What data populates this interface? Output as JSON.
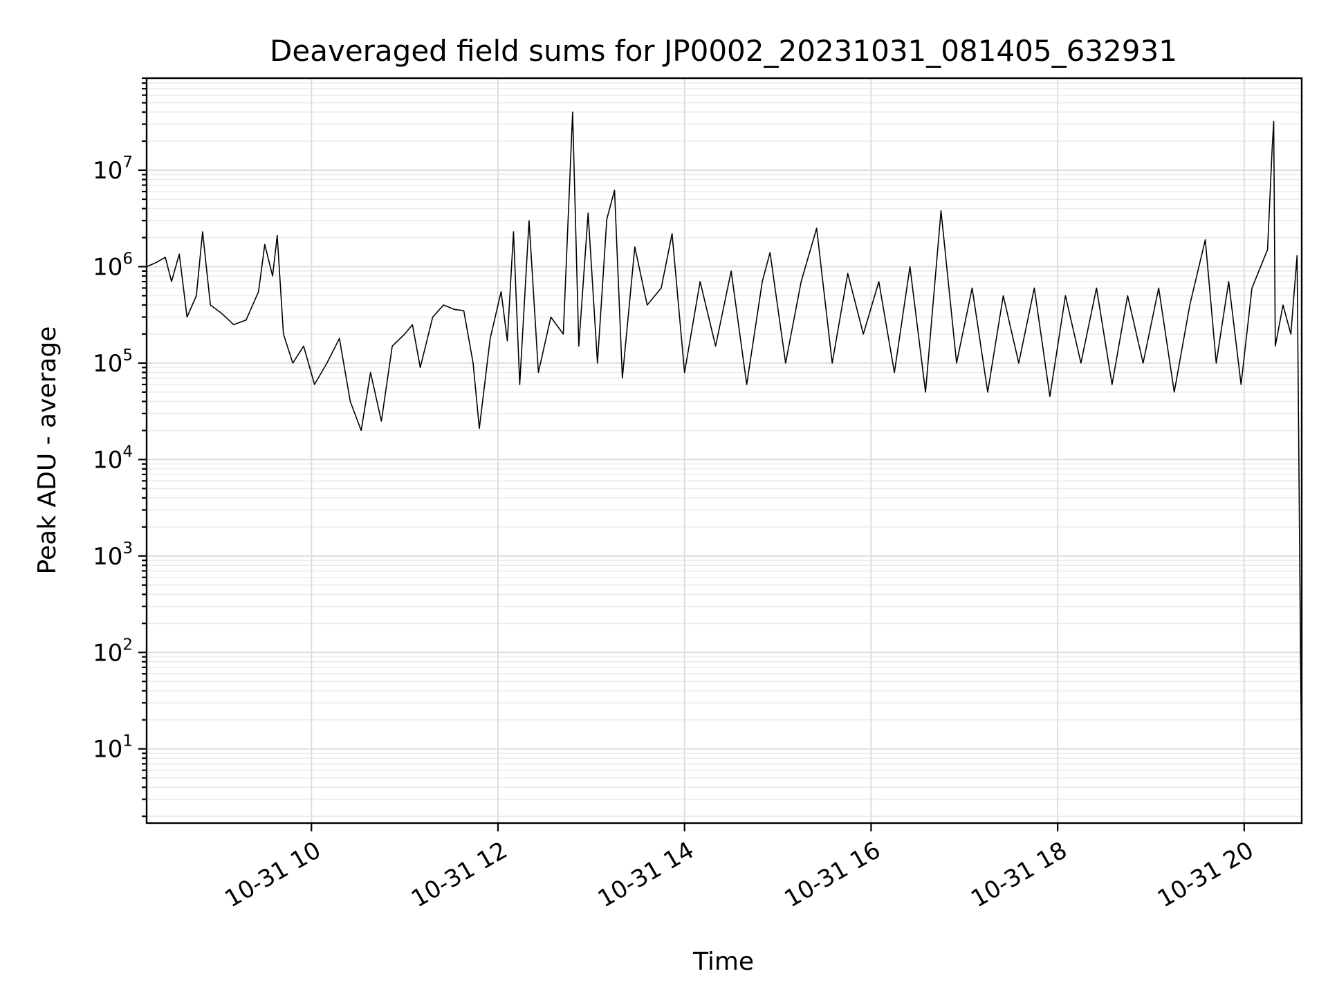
{
  "chart_data": {
    "type": "line",
    "title": "Deaveraged field sums for JP0002_20231031_081405_632931",
    "xlabel": "Time",
    "ylabel": "Peak ADU - average",
    "xscale": "time",
    "yscale": "log",
    "xlim": [
      "2023-10-31 08:14",
      "2023-10-31 20:37"
    ],
    "ylim": [
      1.7,
      90000000
    ],
    "grid": {
      "major": true,
      "minor": true
    },
    "x_ticks": [
      {
        "value": "2023-10-31 10:00",
        "label": "10-31 10"
      },
      {
        "value": "2023-10-31 12:00",
        "label": "10-31 12"
      },
      {
        "value": "2023-10-31 14:00",
        "label": "10-31 14"
      },
      {
        "value": "2023-10-31 16:00",
        "label": "10-31 16"
      },
      {
        "value": "2023-10-31 18:00",
        "label": "10-31 18"
      },
      {
        "value": "2023-10-31 20:00",
        "label": "10-31 20"
      }
    ],
    "y_ticks": [
      {
        "value": 10,
        "base": "10",
        "exp": "1"
      },
      {
        "value": 100,
        "base": "10",
        "exp": "2"
      },
      {
        "value": 1000,
        "base": "10",
        "exp": "3"
      },
      {
        "value": 10000,
        "base": "10",
        "exp": "4"
      },
      {
        "value": 100000,
        "base": "10",
        "exp": "5"
      },
      {
        "value": 1000000,
        "base": "10",
        "exp": "6"
      },
      {
        "value": 10000000,
        "base": "10",
        "exp": "7"
      }
    ],
    "series": [
      {
        "color": "#000000",
        "points": [
          [
            "2023-10-31 08:14",
            1000000
          ],
          [
            "2023-10-31 08:20",
            1100000
          ],
          [
            "2023-10-31 08:26",
            1250000
          ],
          [
            "2023-10-31 08:30",
            700000
          ],
          [
            "2023-10-31 08:35",
            1350000
          ],
          [
            "2023-10-31 08:40",
            300000
          ],
          [
            "2023-10-31 08:46",
            500000
          ],
          [
            "2023-10-31 08:50",
            2300000
          ],
          [
            "2023-10-31 08:55",
            400000
          ],
          [
            "2023-10-31 09:02",
            330000
          ],
          [
            "2023-10-31 09:10",
            250000
          ],
          [
            "2023-10-31 09:18",
            280000
          ],
          [
            "2023-10-31 09:26",
            550000
          ],
          [
            "2023-10-31 09:30",
            1700000
          ],
          [
            "2023-10-31 09:35",
            800000
          ],
          [
            "2023-10-31 09:38",
            2100000
          ],
          [
            "2023-10-31 09:42",
            200000
          ],
          [
            "2023-10-31 09:48",
            100000
          ],
          [
            "2023-10-31 09:55",
            150000
          ],
          [
            "2023-10-31 10:02",
            60000
          ],
          [
            "2023-10-31 10:10",
            100000
          ],
          [
            "2023-10-31 10:18",
            180000
          ],
          [
            "2023-10-31 10:25",
            40000
          ],
          [
            "2023-10-31 10:32",
            20000
          ],
          [
            "2023-10-31 10:38",
            80000
          ],
          [
            "2023-10-31 10:45",
            25000
          ],
          [
            "2023-10-31 10:52",
            150000
          ],
          [
            "2023-10-31 11:00",
            200000
          ],
          [
            "2023-10-31 11:05",
            250000
          ],
          [
            "2023-10-31 11:10",
            90000
          ],
          [
            "2023-10-31 11:18",
            300000
          ],
          [
            "2023-10-31 11:25",
            400000
          ],
          [
            "2023-10-31 11:32",
            360000
          ],
          [
            "2023-10-31 11:38",
            350000
          ],
          [
            "2023-10-31 11:44",
            100000
          ],
          [
            "2023-10-31 11:48",
            21000
          ],
          [
            "2023-10-31 11:55",
            180000
          ],
          [
            "2023-10-31 12:02",
            550000
          ],
          [
            "2023-10-31 12:06",
            170000
          ],
          [
            "2023-10-31 12:10",
            2300000
          ],
          [
            "2023-10-31 12:14",
            60000
          ],
          [
            "2023-10-31 12:20",
            3000000
          ],
          [
            "2023-10-31 12:26",
            80000
          ],
          [
            "2023-10-31 12:34",
            300000
          ],
          [
            "2023-10-31 12:42",
            200000
          ],
          [
            "2023-10-31 12:48",
            40000000
          ],
          [
            "2023-10-31 12:52",
            150000
          ],
          [
            "2023-10-31 12:58",
            3600000
          ],
          [
            "2023-10-31 13:04",
            100000
          ],
          [
            "2023-10-31 13:10",
            3100000
          ],
          [
            "2023-10-31 13:15",
            6200000
          ],
          [
            "2023-10-31 13:20",
            70000
          ],
          [
            "2023-10-31 13:28",
            1600000
          ],
          [
            "2023-10-31 13:36",
            400000
          ],
          [
            "2023-10-31 13:45",
            600000
          ],
          [
            "2023-10-31 13:52",
            2200000
          ],
          [
            "2023-10-31 14:00",
            80000
          ],
          [
            "2023-10-31 14:10",
            700000
          ],
          [
            "2023-10-31 14:20",
            150000
          ],
          [
            "2023-10-31 14:30",
            900000
          ],
          [
            "2023-10-31 14:40",
            60000
          ],
          [
            "2023-10-31 14:50",
            700000
          ],
          [
            "2023-10-31 14:55",
            1400000
          ],
          [
            "2023-10-31 15:05",
            100000
          ],
          [
            "2023-10-31 15:15",
            700000
          ],
          [
            "2023-10-31 15:25",
            2500000
          ],
          [
            "2023-10-31 15:35",
            100000
          ],
          [
            "2023-10-31 15:45",
            850000
          ],
          [
            "2023-10-31 15:55",
            200000
          ],
          [
            "2023-10-31 16:05",
            700000
          ],
          [
            "2023-10-31 16:15",
            80000
          ],
          [
            "2023-10-31 16:25",
            1000000
          ],
          [
            "2023-10-31 16:35",
            50000
          ],
          [
            "2023-10-31 16:45",
            3800000
          ],
          [
            "2023-10-31 16:55",
            100000
          ],
          [
            "2023-10-31 17:05",
            600000
          ],
          [
            "2023-10-31 17:15",
            50000
          ],
          [
            "2023-10-31 17:25",
            500000
          ],
          [
            "2023-10-31 17:35",
            100000
          ],
          [
            "2023-10-31 17:45",
            600000
          ],
          [
            "2023-10-31 17:55",
            45000
          ],
          [
            "2023-10-31 18:05",
            500000
          ],
          [
            "2023-10-31 18:15",
            100000
          ],
          [
            "2023-10-31 18:25",
            600000
          ],
          [
            "2023-10-31 18:35",
            60000
          ],
          [
            "2023-10-31 18:45",
            500000
          ],
          [
            "2023-10-31 18:55",
            100000
          ],
          [
            "2023-10-31 19:05",
            600000
          ],
          [
            "2023-10-31 19:15",
            50000
          ],
          [
            "2023-10-31 19:25",
            400000
          ],
          [
            "2023-10-31 19:35",
            1900000
          ],
          [
            "2023-10-31 19:42",
            100000
          ],
          [
            "2023-10-31 19:50",
            700000
          ],
          [
            "2023-10-31 19:58",
            60000
          ],
          [
            "2023-10-31 20:05",
            600000
          ],
          [
            "2023-10-31 20:15",
            1500000
          ],
          [
            "2023-10-31 20:18",
            17000000
          ],
          [
            "2023-10-31 20:19",
            32000000
          ],
          [
            "2023-10-31 20:20",
            150000
          ],
          [
            "2023-10-31 20:25",
            400000
          ],
          [
            "2023-10-31 20:30",
            200000
          ],
          [
            "2023-10-31 20:34",
            1300000
          ],
          [
            "2023-10-31 20:37",
            4.0
          ]
        ]
      }
    ]
  }
}
